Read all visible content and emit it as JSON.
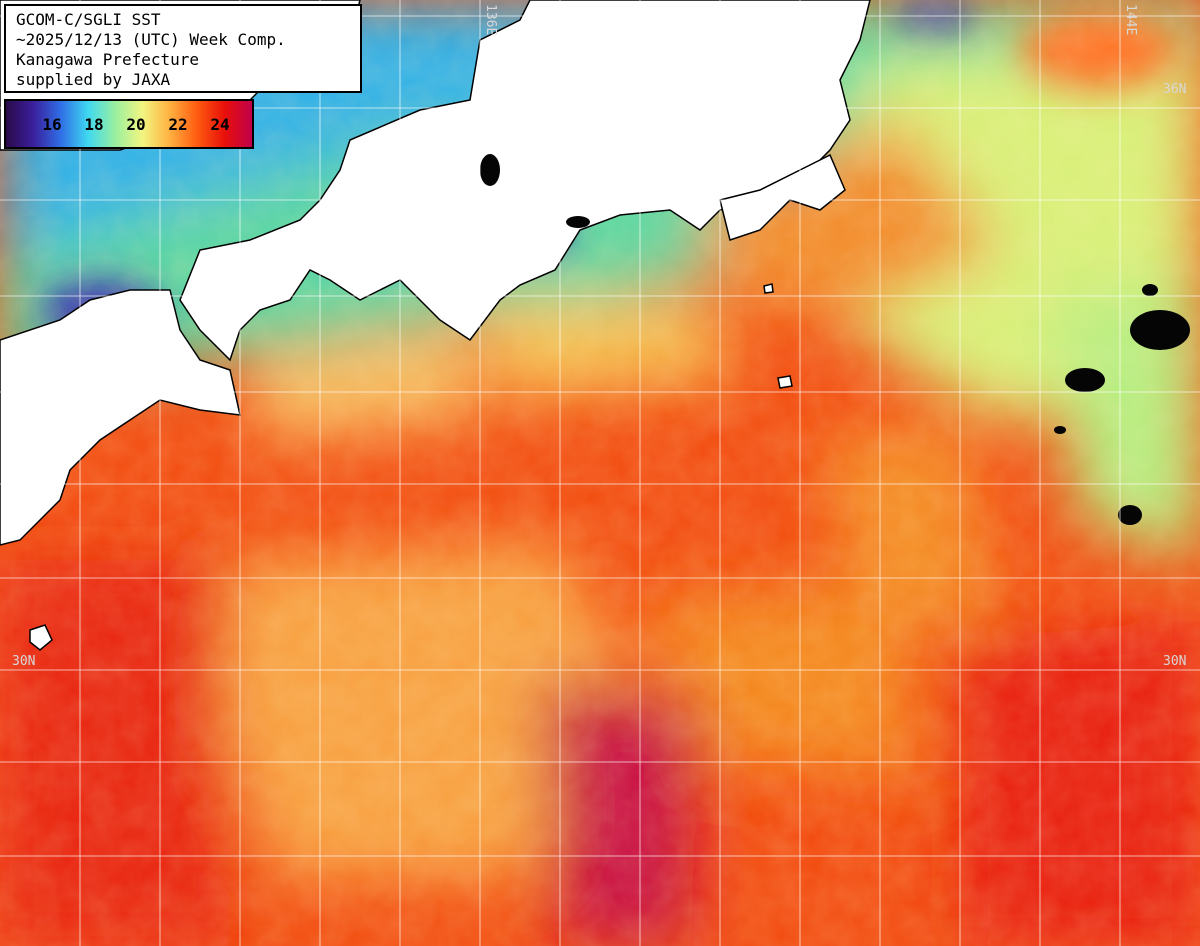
{
  "title": {
    "lines": [
      "GCOM-C/SGLI SST",
      "~2025/12/13 (UTC) Week Comp.",
      "Kanagawa Prefecture",
      "supplied by JAXA"
    ]
  },
  "legend": {
    "ticks": [
      "16",
      "18",
      "20",
      "22",
      "24"
    ],
    "ramp_colors": [
      "#2a0a4a",
      "#3b1f9c",
      "#2f6ee6",
      "#3fd8f0",
      "#9af0a0",
      "#f2f580",
      "#ffb040",
      "#ff5a10",
      "#e8100a",
      "#c0004a"
    ]
  },
  "grid_labels": {
    "lon_136": "136E",
    "lon_144": "144E",
    "lat_30_left": "30N",
    "lat_30_right": "30N",
    "lat_36_right": "36N"
  },
  "colors": {
    "land": "#ffffff",
    "coast": "#000000",
    "grid": "#ffffff",
    "cloud": "#050505"
  }
}
